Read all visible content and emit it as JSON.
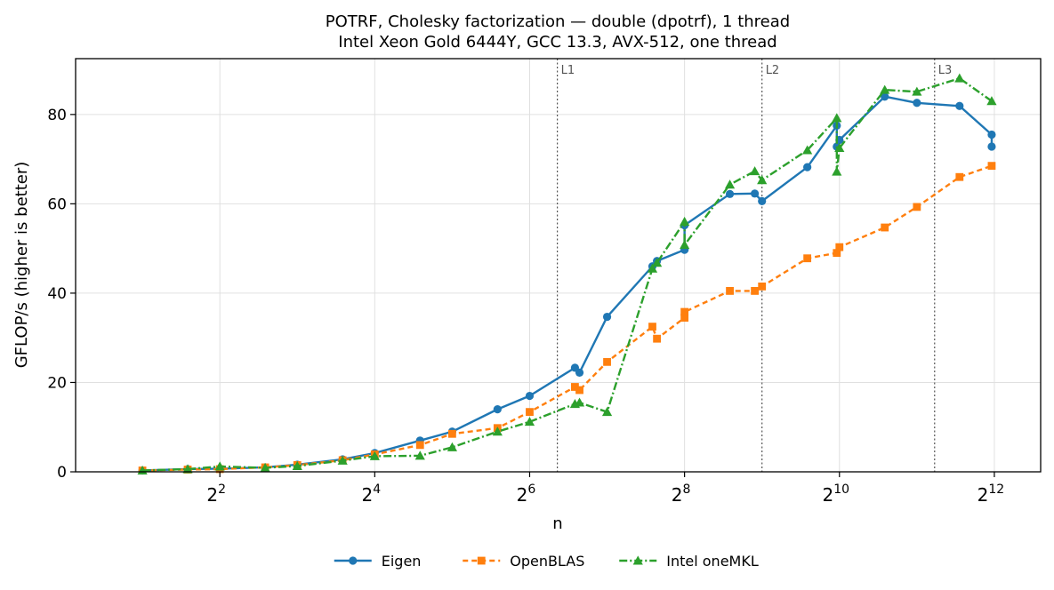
{
  "chart_data": {
    "type": "line",
    "title": "POTRF, Cholesky factorization — double (dpotrf), 1 thread",
    "subtitle": "Intel Xeon Gold 6444Y, GCC 13.3, AVX-512, one thread",
    "xlabel": "n",
    "ylabel": "GFLOP/s (higher is better)",
    "x_scale": "log2",
    "xlim": [
      1.1,
      6200
    ],
    "ylim": [
      0,
      92.5
    ],
    "grid": true,
    "legend_position": "bottom-center",
    "x_ticks": [
      {
        "value": 4,
        "base": "2",
        "exp": "2"
      },
      {
        "value": 16,
        "base": "2",
        "exp": "4"
      },
      {
        "value": 64,
        "base": "2",
        "exp": "6"
      },
      {
        "value": 256,
        "base": "2",
        "exp": "8"
      },
      {
        "value": 1024,
        "base": "2",
        "exp": "10"
      },
      {
        "value": 4096,
        "base": "2",
        "exp": "12"
      }
    ],
    "y_ticks": [
      {
        "value": 0,
        "label": "0"
      },
      {
        "value": 20,
        "label": "20"
      },
      {
        "value": 40,
        "label": "40"
      },
      {
        "value": 60,
        "label": "60"
      },
      {
        "value": 80,
        "label": "80"
      }
    ],
    "cache_lines": [
      {
        "label": "L1",
        "x": 82
      },
      {
        "label": "L2",
        "x": 512
      },
      {
        "label": "L3",
        "x": 2400
      }
    ],
    "series": [
      {
        "name": "Eigen",
        "color": "#1f77b4",
        "marker": "circle",
        "dash": "solid",
        "points": [
          [
            2,
            0.3
          ],
          [
            3,
            0.6
          ],
          [
            4,
            0.7
          ],
          [
            6,
            1.0
          ],
          [
            8,
            1.6
          ],
          [
            12,
            2.8
          ],
          [
            16,
            4.2
          ],
          [
            24,
            7.0
          ],
          [
            32,
            9.0
          ],
          [
            48,
            14.0
          ],
          [
            64,
            17.0
          ],
          [
            96,
            23.3
          ],
          [
            100,
            22.2
          ],
          [
            128,
            34.7
          ],
          [
            192,
            46.0
          ],
          [
            200,
            47.2
          ],
          [
            256,
            49.7
          ],
          [
            256,
            55.2
          ],
          [
            384,
            62.2
          ],
          [
            480,
            62.3
          ],
          [
            512,
            60.6
          ],
          [
            768,
            68.2
          ],
          [
            1000,
            77.5
          ],
          [
            1000,
            72.8
          ],
          [
            1024,
            74.3
          ],
          [
            1536,
            84.0
          ],
          [
            2048,
            82.6
          ],
          [
            3000,
            81.9
          ],
          [
            4000,
            75.5
          ],
          [
            4000,
            72.8
          ]
        ]
      },
      {
        "name": "OpenBLAS",
        "color": "#ff7f0e",
        "marker": "square",
        "dash": "6,4",
        "points": [
          [
            2,
            0.3
          ],
          [
            3,
            0.5
          ],
          [
            4,
            0.6
          ],
          [
            6,
            1.0
          ],
          [
            8,
            1.5
          ],
          [
            12,
            2.6
          ],
          [
            16,
            3.9
          ],
          [
            24,
            6.0
          ],
          [
            32,
            8.5
          ],
          [
            48,
            9.8
          ],
          [
            64,
            13.4
          ],
          [
            96,
            19.0
          ],
          [
            100,
            18.3
          ],
          [
            128,
            24.6
          ],
          [
            192,
            32.5
          ],
          [
            200,
            29.8
          ],
          [
            256,
            34.5
          ],
          [
            256,
            35.8
          ],
          [
            384,
            40.5
          ],
          [
            480,
            40.5
          ],
          [
            512,
            41.5
          ],
          [
            768,
            47.8
          ],
          [
            1000,
            49.0
          ],
          [
            1024,
            50.3
          ],
          [
            1536,
            54.7
          ],
          [
            2048,
            59.3
          ],
          [
            3000,
            66.0
          ],
          [
            4000,
            68.5
          ]
        ]
      },
      {
        "name": "Intel oneMKL",
        "color": "#2ca02c",
        "marker": "triangle",
        "dash": "9,3,2,3",
        "points": [
          [
            2,
            0.3
          ],
          [
            3,
            0.6
          ],
          [
            4,
            1.2
          ],
          [
            6,
            0.9
          ],
          [
            8,
            1.3
          ],
          [
            12,
            2.5
          ],
          [
            16,
            3.5
          ],
          [
            24,
            3.6
          ],
          [
            32,
            5.5
          ],
          [
            48,
            9.0
          ],
          [
            64,
            11.2
          ],
          [
            96,
            15.2
          ],
          [
            100,
            15.5
          ],
          [
            128,
            13.4
          ],
          [
            192,
            45.5
          ],
          [
            200,
            46.8
          ],
          [
            256,
            56.0
          ],
          [
            256,
            50.8
          ],
          [
            384,
            64.3
          ],
          [
            480,
            67.3
          ],
          [
            512,
            65.3
          ],
          [
            768,
            72.0
          ],
          [
            1000,
            79.2
          ],
          [
            1000,
            67.2
          ],
          [
            1024,
            72.5
          ],
          [
            1536,
            85.5
          ],
          [
            2048,
            85.1
          ],
          [
            3000,
            88.1
          ],
          [
            4000,
            83.0
          ]
        ]
      }
    ]
  }
}
